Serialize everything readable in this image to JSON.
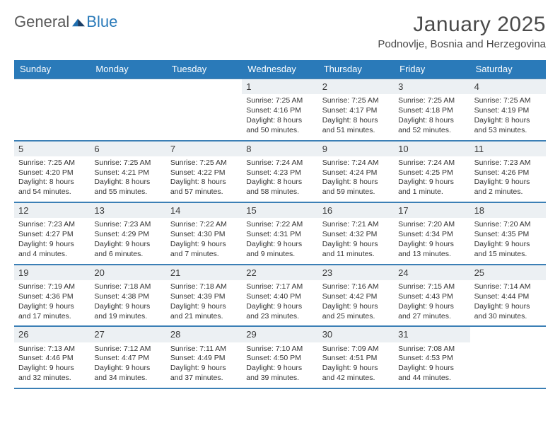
{
  "logo": {
    "text1": "General",
    "text2": "Blue"
  },
  "title": "January 2025",
  "location": "Podnovlje, Bosnia and Herzegovina",
  "colors": {
    "header_bg": "#2a7ab9",
    "header_fg": "#ffffff",
    "rule": "#3b7fb5",
    "daynum_bg": "#ecf0f3",
    "text": "#333333",
    "logo_gray": "#5a5a5a",
    "logo_blue": "#2a7ab9"
  },
  "day_names": [
    "Sunday",
    "Monday",
    "Tuesday",
    "Wednesday",
    "Thursday",
    "Friday",
    "Saturday"
  ],
  "weeks": [
    [
      null,
      null,
      null,
      {
        "n": "1",
        "sr": "7:25 AM",
        "ss": "4:16 PM",
        "dl": "8 hours and 50 minutes."
      },
      {
        "n": "2",
        "sr": "7:25 AM",
        "ss": "4:17 PM",
        "dl": "8 hours and 51 minutes."
      },
      {
        "n": "3",
        "sr": "7:25 AM",
        "ss": "4:18 PM",
        "dl": "8 hours and 52 minutes."
      },
      {
        "n": "4",
        "sr": "7:25 AM",
        "ss": "4:19 PM",
        "dl": "8 hours and 53 minutes."
      }
    ],
    [
      {
        "n": "5",
        "sr": "7:25 AM",
        "ss": "4:20 PM",
        "dl": "8 hours and 54 minutes."
      },
      {
        "n": "6",
        "sr": "7:25 AM",
        "ss": "4:21 PM",
        "dl": "8 hours and 55 minutes."
      },
      {
        "n": "7",
        "sr": "7:25 AM",
        "ss": "4:22 PM",
        "dl": "8 hours and 57 minutes."
      },
      {
        "n": "8",
        "sr": "7:24 AM",
        "ss": "4:23 PM",
        "dl": "8 hours and 58 minutes."
      },
      {
        "n": "9",
        "sr": "7:24 AM",
        "ss": "4:24 PM",
        "dl": "8 hours and 59 minutes."
      },
      {
        "n": "10",
        "sr": "7:24 AM",
        "ss": "4:25 PM",
        "dl": "9 hours and 1 minute."
      },
      {
        "n": "11",
        "sr": "7:23 AM",
        "ss": "4:26 PM",
        "dl": "9 hours and 2 minutes."
      }
    ],
    [
      {
        "n": "12",
        "sr": "7:23 AM",
        "ss": "4:27 PM",
        "dl": "9 hours and 4 minutes."
      },
      {
        "n": "13",
        "sr": "7:23 AM",
        "ss": "4:29 PM",
        "dl": "9 hours and 6 minutes."
      },
      {
        "n": "14",
        "sr": "7:22 AM",
        "ss": "4:30 PM",
        "dl": "9 hours and 7 minutes."
      },
      {
        "n": "15",
        "sr": "7:22 AM",
        "ss": "4:31 PM",
        "dl": "9 hours and 9 minutes."
      },
      {
        "n": "16",
        "sr": "7:21 AM",
        "ss": "4:32 PM",
        "dl": "9 hours and 11 minutes."
      },
      {
        "n": "17",
        "sr": "7:20 AM",
        "ss": "4:34 PM",
        "dl": "9 hours and 13 minutes."
      },
      {
        "n": "18",
        "sr": "7:20 AM",
        "ss": "4:35 PM",
        "dl": "9 hours and 15 minutes."
      }
    ],
    [
      {
        "n": "19",
        "sr": "7:19 AM",
        "ss": "4:36 PM",
        "dl": "9 hours and 17 minutes."
      },
      {
        "n": "20",
        "sr": "7:18 AM",
        "ss": "4:38 PM",
        "dl": "9 hours and 19 minutes."
      },
      {
        "n": "21",
        "sr": "7:18 AM",
        "ss": "4:39 PM",
        "dl": "9 hours and 21 minutes."
      },
      {
        "n": "22",
        "sr": "7:17 AM",
        "ss": "4:40 PM",
        "dl": "9 hours and 23 minutes."
      },
      {
        "n": "23",
        "sr": "7:16 AM",
        "ss": "4:42 PM",
        "dl": "9 hours and 25 minutes."
      },
      {
        "n": "24",
        "sr": "7:15 AM",
        "ss": "4:43 PM",
        "dl": "9 hours and 27 minutes."
      },
      {
        "n": "25",
        "sr": "7:14 AM",
        "ss": "4:44 PM",
        "dl": "9 hours and 30 minutes."
      }
    ],
    [
      {
        "n": "26",
        "sr": "7:13 AM",
        "ss": "4:46 PM",
        "dl": "9 hours and 32 minutes."
      },
      {
        "n": "27",
        "sr": "7:12 AM",
        "ss": "4:47 PM",
        "dl": "9 hours and 34 minutes."
      },
      {
        "n": "28",
        "sr": "7:11 AM",
        "ss": "4:49 PM",
        "dl": "9 hours and 37 minutes."
      },
      {
        "n": "29",
        "sr": "7:10 AM",
        "ss": "4:50 PM",
        "dl": "9 hours and 39 minutes."
      },
      {
        "n": "30",
        "sr": "7:09 AM",
        "ss": "4:51 PM",
        "dl": "9 hours and 42 minutes."
      },
      {
        "n": "31",
        "sr": "7:08 AM",
        "ss": "4:53 PM",
        "dl": "9 hours and 44 minutes."
      },
      null
    ]
  ],
  "labels": {
    "sunrise": "Sunrise:",
    "sunset": "Sunset:",
    "daylight": "Daylight:"
  }
}
